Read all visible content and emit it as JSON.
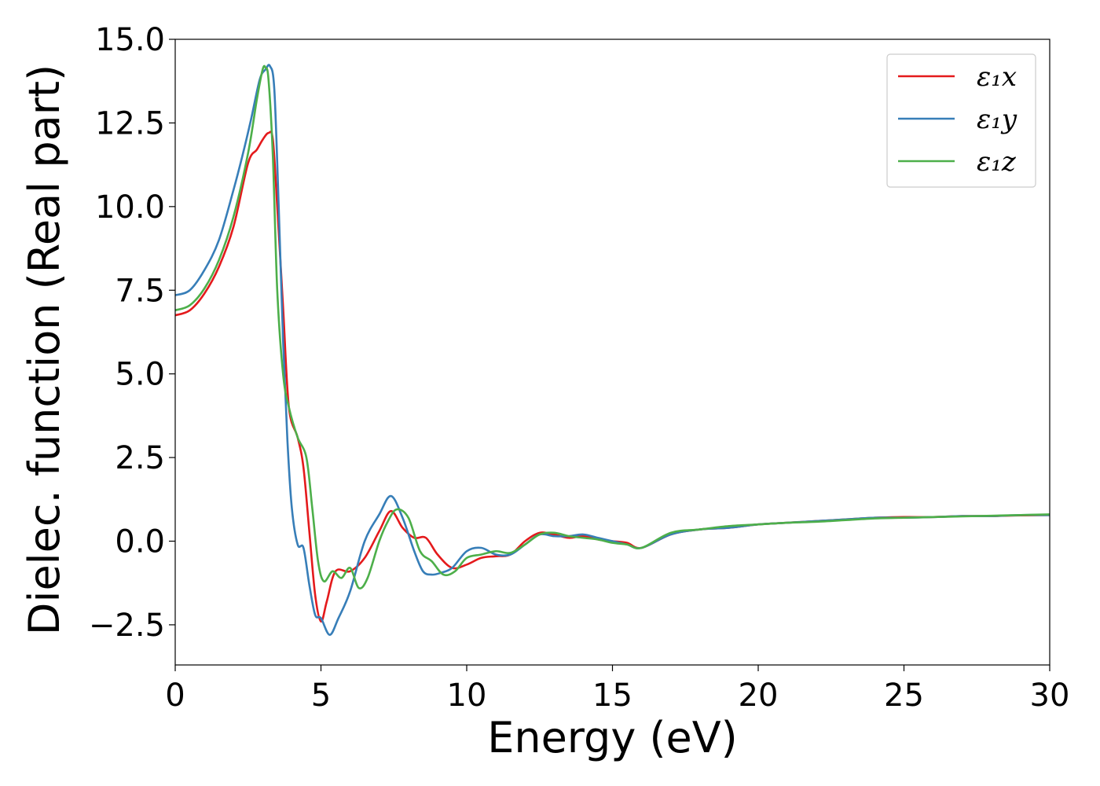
{
  "chart_data": {
    "type": "line",
    "xlabel": "Energy (eV)",
    "ylabel": "Dielec. function (Real part)",
    "xlim": [
      0,
      30
    ],
    "ylim": [
      -3.7,
      15.0
    ],
    "xticks": [
      0,
      5,
      10,
      15,
      20,
      25,
      30
    ],
    "xtick_labels": [
      "0",
      "5",
      "10",
      "15",
      "20",
      "25",
      "30"
    ],
    "yticks": [
      -2.5,
      0.0,
      2.5,
      5.0,
      7.5,
      10.0,
      12.5,
      15.0
    ],
    "ytick_labels": [
      "−2.5",
      "0.0",
      "2.5",
      "5.0",
      "7.5",
      "10.0",
      "12.5",
      "15.0"
    ],
    "grid": false,
    "legend_position": "top-right",
    "series": [
      {
        "name": "ε₁x",
        "color": "#e41a1c",
        "x": [
          0,
          0.5,
          1.0,
          1.5,
          2.0,
          2.5,
          2.8,
          3.0,
          3.2,
          3.35,
          3.5,
          3.7,
          3.9,
          4.2,
          4.4,
          4.6,
          4.8,
          5.0,
          5.2,
          5.5,
          6.0,
          6.5,
          7.0,
          7.4,
          7.8,
          8.2,
          8.6,
          9.0,
          9.5,
          10.0,
          10.5,
          11.0,
          11.5,
          12.0,
          12.5,
          13.0,
          13.5,
          14.0,
          14.5,
          15.0,
          15.5,
          16.0,
          17.0,
          18.0,
          19.0,
          20.0,
          21.0,
          22.0,
          23.0,
          24.0,
          25.0,
          26.0,
          27.0,
          28.0,
          29.0,
          30.0
        ],
        "y": [
          6.75,
          6.9,
          7.4,
          8.2,
          9.4,
          11.3,
          11.7,
          12.0,
          12.2,
          12.0,
          10.0,
          7.0,
          4.0,
          3.1,
          2.2,
          0.3,
          -1.6,
          -2.4,
          -1.8,
          -0.9,
          -0.9,
          -0.5,
          0.3,
          0.9,
          0.4,
          0.1,
          0.1,
          -0.4,
          -0.8,
          -0.7,
          -0.5,
          -0.45,
          -0.4,
          0.0,
          0.25,
          0.2,
          0.1,
          0.15,
          0.05,
          0.0,
          -0.05,
          -0.2,
          0.2,
          0.35,
          0.4,
          0.5,
          0.55,
          0.6,
          0.65,
          0.7,
          0.72,
          0.72,
          0.75,
          0.75,
          0.77,
          0.78
        ]
      },
      {
        "name": "ε₁y",
        "color": "#377eb8",
        "x": [
          0,
          0.5,
          1.0,
          1.5,
          2.0,
          2.3,
          2.6,
          2.9,
          3.1,
          3.25,
          3.4,
          3.55,
          3.7,
          3.85,
          4.0,
          4.2,
          4.4,
          4.6,
          4.8,
          5.0,
          5.3,
          5.6,
          6.0,
          6.5,
          7.0,
          7.4,
          7.8,
          8.2,
          8.5,
          8.8,
          9.1,
          9.5,
          10.0,
          10.5,
          11.0,
          11.5,
          12.0,
          12.5,
          13.0,
          13.5,
          14.0,
          14.5,
          15.0,
          15.5,
          16.0,
          17.0,
          18.0,
          19.0,
          20.0,
          21.0,
          22.0,
          23.0,
          24.0,
          25.0,
          26.0,
          27.0,
          28.0,
          29.0,
          30.0
        ],
        "y": [
          7.35,
          7.5,
          8.1,
          9.0,
          10.5,
          11.5,
          12.6,
          13.8,
          14.1,
          14.2,
          13.5,
          10.0,
          6.0,
          3.0,
          1.0,
          -0.1,
          -0.2,
          -1.3,
          -2.2,
          -2.3,
          -2.8,
          -2.3,
          -1.5,
          0.0,
          0.8,
          1.35,
          0.7,
          -0.3,
          -0.9,
          -1.0,
          -0.95,
          -0.8,
          -0.3,
          -0.2,
          -0.4,
          -0.4,
          -0.1,
          0.2,
          0.15,
          0.15,
          0.2,
          0.1,
          0.0,
          -0.1,
          -0.2,
          0.2,
          0.35,
          0.4,
          0.5,
          0.55,
          0.6,
          0.65,
          0.7,
          0.7,
          0.72,
          0.75,
          0.75,
          0.78,
          0.78
        ]
      },
      {
        "name": "ε₁z",
        "color": "#4daf4a",
        "x": [
          0,
          0.5,
          1.0,
          1.5,
          2.0,
          2.5,
          2.8,
          3.0,
          3.1,
          3.2,
          3.35,
          3.5,
          3.7,
          3.9,
          4.2,
          4.5,
          4.7,
          4.9,
          5.1,
          5.4,
          5.7,
          6.0,
          6.3,
          6.6,
          7.0,
          7.3,
          7.6,
          8.0,
          8.4,
          8.8,
          9.2,
          9.6,
          10.0,
          10.5,
          11.0,
          11.5,
          12.0,
          12.5,
          13.0,
          13.5,
          14.0,
          14.5,
          15.0,
          15.5,
          16.0,
          17.0,
          18.0,
          19.0,
          20.0,
          21.0,
          22.0,
          23.0,
          24.0,
          25.0,
          26.0,
          27.0,
          28.0,
          29.0,
          30.0
        ],
        "y": [
          6.9,
          7.05,
          7.55,
          8.4,
          9.7,
          11.6,
          13.2,
          14.1,
          14.15,
          13.8,
          11.5,
          7.5,
          5.0,
          4.0,
          3.1,
          2.5,
          1.0,
          -0.6,
          -1.2,
          -0.9,
          -1.1,
          -0.8,
          -1.4,
          -1.1,
          0.0,
          0.6,
          0.95,
          0.7,
          -0.3,
          -0.6,
          -1.0,
          -0.9,
          -0.5,
          -0.4,
          -0.3,
          -0.35,
          -0.1,
          0.2,
          0.25,
          0.15,
          0.1,
          0.05,
          -0.05,
          -0.1,
          -0.2,
          0.25,
          0.35,
          0.45,
          0.5,
          0.55,
          0.58,
          0.63,
          0.68,
          0.7,
          0.72,
          0.74,
          0.76,
          0.78,
          0.8
        ]
      }
    ]
  }
}
